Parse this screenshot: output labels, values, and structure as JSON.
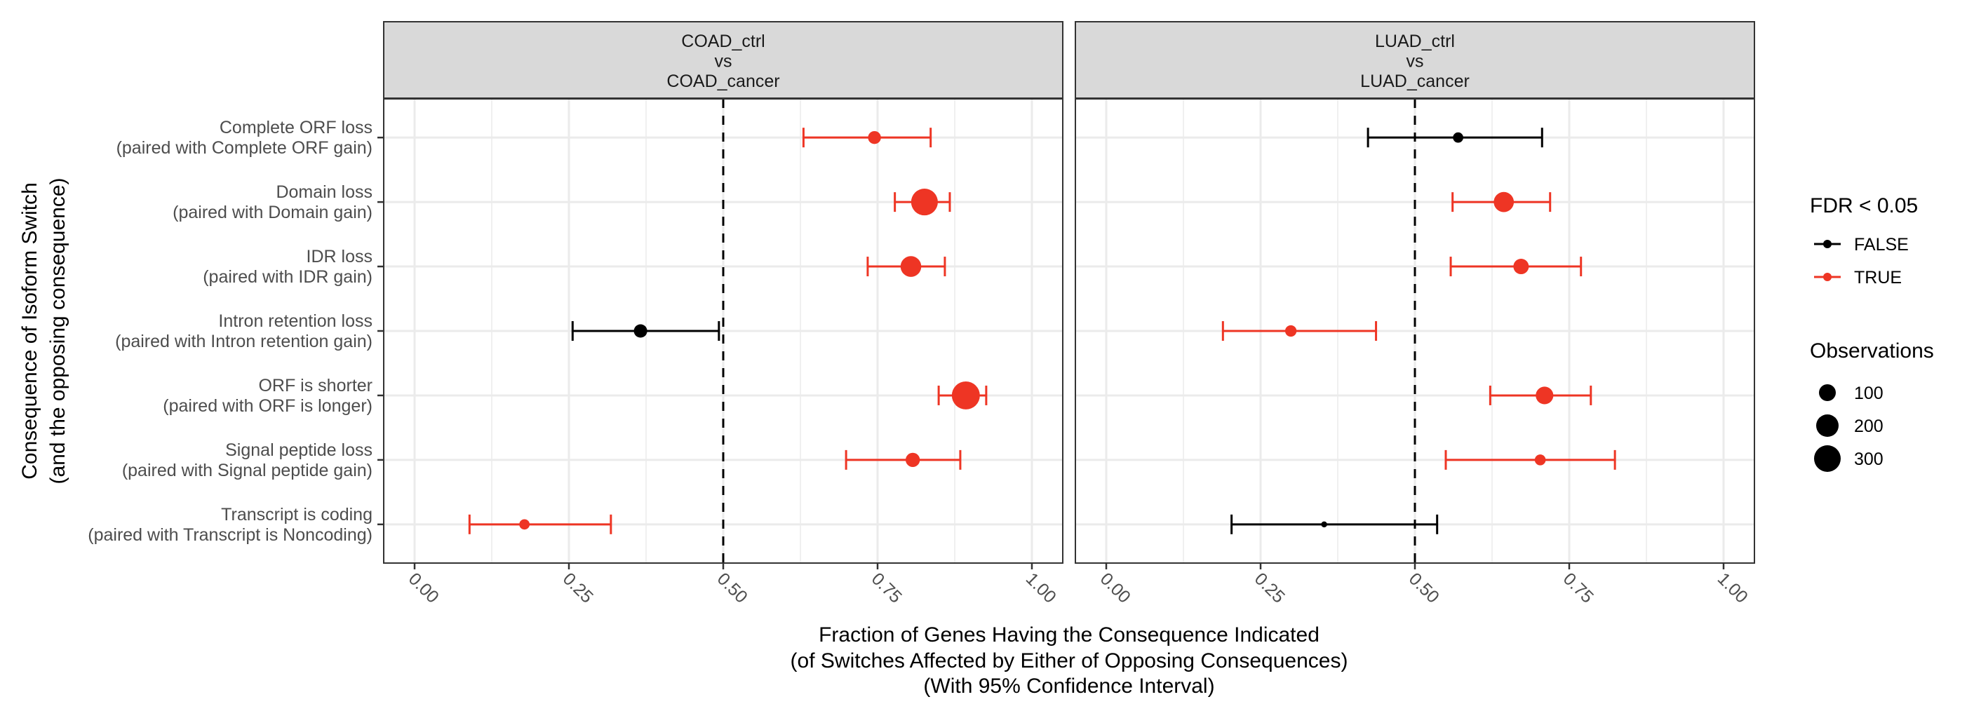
{
  "chart_data": {
    "type": "scatter",
    "subtype": "dot-and-errorbar, faceted",
    "xlabel_lines": [
      "Fraction of Genes Having the Consequence Indicated",
      "(of Switches Affected by Either of Opposing Consequences)",
      "(With 95% Confidence Interval)"
    ],
    "ylabel_lines": [
      "Consequence of Isoform Switch",
      "(and the opposing consequence)"
    ],
    "xlim": [
      0,
      1
    ],
    "xticks": [
      0,
      0.25,
      0.5,
      0.75,
      1.0
    ],
    "xtick_labels": [
      "0.00",
      "0.25",
      "0.50",
      "0.75",
      "1.00"
    ],
    "reference_line": 0.5,
    "grid": true,
    "categories": [
      {
        "line1": "Complete ORF loss",
        "line2": "(paired with Complete ORF gain)"
      },
      {
        "line1": "Domain loss",
        "line2": "(paired with Domain gain)"
      },
      {
        "line1": "IDR loss",
        "line2": "(paired with IDR gain)"
      },
      {
        "line1": "Intron retention loss",
        "line2": "(paired with Intron retention gain)"
      },
      {
        "line1": "ORF is shorter",
        "line2": "(paired with ORF is longer)"
      },
      {
        "line1": "Signal peptide loss",
        "line2": "(paired with Signal peptide gain)"
      },
      {
        "line1": "Transcript is coding",
        "line2": "(paired with Transcript is Noncoding)"
      }
    ],
    "facets": [
      {
        "strip_lines": [
          "COAD_ctrl",
          "vs",
          "COAD_cancer"
        ],
        "points": [
          {
            "fraction": 0.745,
            "ci_low": 0.63,
            "ci_high": 0.836,
            "significant": true,
            "observations": 70
          },
          {
            "fraction": 0.826,
            "ci_low": 0.778,
            "ci_high": 0.867,
            "significant": true,
            "observations": 300
          },
          {
            "fraction": 0.804,
            "ci_low": 0.734,
            "ci_high": 0.859,
            "significant": true,
            "observations": 180
          },
          {
            "fraction": 0.366,
            "ci_low": 0.256,
            "ci_high": 0.493,
            "significant": false,
            "observations": 75
          },
          {
            "fraction": 0.893,
            "ci_low": 0.849,
            "ci_high": 0.926,
            "significant": true,
            "observations": 330
          },
          {
            "fraction": 0.807,
            "ci_low": 0.699,
            "ci_high": 0.884,
            "significant": true,
            "observations": 85
          },
          {
            "fraction": 0.178,
            "ci_low": 0.089,
            "ci_high": 0.318,
            "significant": true,
            "observations": 45
          }
        ]
      },
      {
        "strip_lines": [
          "LUAD_ctrl",
          "vs",
          "LUAD_cancer"
        ],
        "points": [
          {
            "fraction": 0.57,
            "ci_low": 0.424,
            "ci_high": 0.706,
            "significant": false,
            "observations": 45
          },
          {
            "fraction": 0.644,
            "ci_low": 0.561,
            "ci_high": 0.719,
            "significant": true,
            "observations": 170
          },
          {
            "fraction": 0.672,
            "ci_low": 0.558,
            "ci_high": 0.769,
            "significant": true,
            "observations": 100
          },
          {
            "fraction": 0.299,
            "ci_low": 0.189,
            "ci_high": 0.437,
            "significant": true,
            "observations": 55
          },
          {
            "fraction": 0.71,
            "ci_low": 0.622,
            "ci_high": 0.785,
            "significant": true,
            "observations": 130
          },
          {
            "fraction": 0.703,
            "ci_low": 0.55,
            "ci_high": 0.824,
            "significant": true,
            "observations": 50
          },
          {
            "fraction": 0.353,
            "ci_low": 0.203,
            "ci_high": 0.536,
            "significant": false,
            "observations": 15
          }
        ]
      }
    ],
    "legend": {
      "placement": "right",
      "color": {
        "title": "FDR < 0.05",
        "entries": [
          {
            "label": "FALSE",
            "color": "#000000"
          },
          {
            "label": "TRUE",
            "color": "#EE3524"
          }
        ]
      },
      "size": {
        "title": "Observations",
        "entries": [
          {
            "label": "100",
            "value": 100
          },
          {
            "label": "200",
            "value": 200
          },
          {
            "label": "300",
            "value": 300
          }
        ]
      }
    },
    "colors": {
      "significant": "#EE3524",
      "not_significant": "#000000",
      "strip_fill": "#D9D9D9",
      "grid": "#EBEBEB",
      "panel_border": "#333333"
    }
  }
}
